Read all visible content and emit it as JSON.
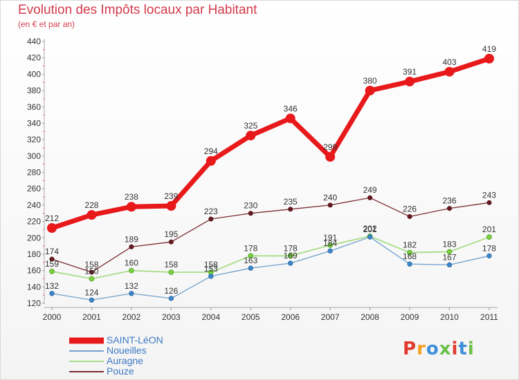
{
  "title": "Evolution des Impôts locaux par Habitant",
  "subtitle": "(en € et par an)",
  "logo_text": "Proxiti",
  "logo_colors": [
    "#e03a2f",
    "#f2a020",
    "#3d8fd9",
    "#6cc04a",
    "#e03a2f",
    "#3d8fd9",
    "#6cc04a"
  ],
  "chart_data": {
    "type": "line",
    "title": "Evolution des Impôts locaux par Habitant",
    "subtitle": "(en € et par an)",
    "x": [
      "2000",
      "2001",
      "2002",
      "2003",
      "2004",
      "2005",
      "2006",
      "2007",
      "2008",
      "2009",
      "2010",
      "2011"
    ],
    "ylim": [
      120,
      440
    ],
    "yticks": [
      120,
      140,
      160,
      180,
      200,
      220,
      240,
      260,
      280,
      300,
      320,
      340,
      360,
      380,
      400,
      420,
      440
    ],
    "grid": false,
    "legend_position": "bottom-left",
    "series": [
      {
        "name": "SAINT-LéON",
        "color": "#e8191b",
        "values": [
          212,
          228,
          238,
          239,
          294,
          325,
          346,
          299,
          380,
          391,
          403,
          419
        ],
        "labels": [
          "212",
          "228",
          "238",
          "239",
          "294",
          "325",
          "346",
          "299",
          "380",
          "391",
          "403",
          "419"
        ]
      },
      {
        "name": "Noueilles",
        "color": "#6fa0cc",
        "values": [
          132,
          124,
          132,
          126,
          153,
          163,
          169,
          184,
          201,
          168,
          167,
          178
        ],
        "labels": [
          "132",
          "124",
          "132",
          "126",
          "153",
          "163",
          "169",
          "184",
          "201",
          "168",
          "167",
          "178"
        ]
      },
      {
        "name": "Auragne",
        "color": "#a8dc88",
        "values": [
          159,
          150,
          160,
          158,
          158,
          178,
          178,
          191,
          202,
          182,
          183,
          201
        ],
        "labels": [
          "159",
          "150",
          "160",
          "158",
          "158",
          "178",
          "178",
          "191",
          "202",
          "182",
          "183",
          "201"
        ]
      },
      {
        "name": "Pouze",
        "color": "#7a2a32",
        "values": [
          174,
          158,
          189,
          195,
          223,
          230,
          235,
          240,
          249,
          226,
          236,
          243
        ],
        "labels": [
          "174",
          "158",
          "189",
          "195",
          "223",
          "230",
          "235",
          "240",
          "249",
          "226",
          "236",
          "243"
        ]
      }
    ]
  }
}
